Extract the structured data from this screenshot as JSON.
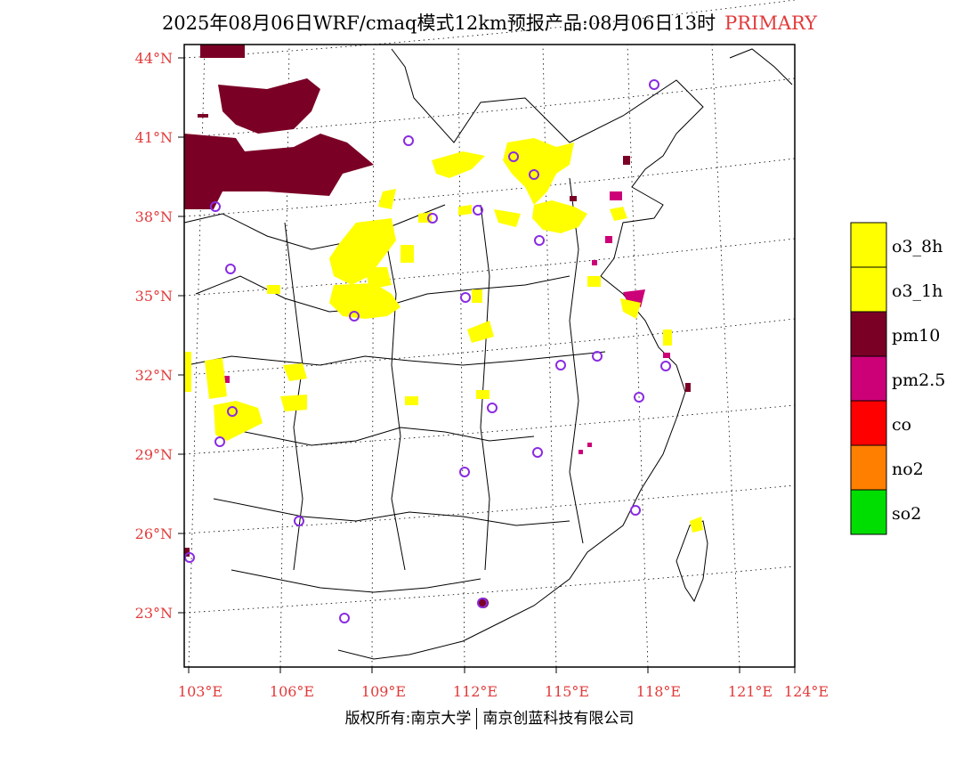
{
  "title": {
    "main": "2025年08月06日WRF/cmaq模式12km预报产品:08月06日13时",
    "tag": "PRIMARY",
    "tag_color": "#e23a3a"
  },
  "map": {
    "lat_labels": [
      "44°N",
      "41°N",
      "38°N",
      "35°N",
      "32°N",
      "29°N",
      "26°N",
      "23°N"
    ],
    "lon_labels": [
      "103°E",
      "106°E",
      "109°E",
      "112°E",
      "115°E",
      "118°E",
      "121°E",
      "124°E"
    ],
    "label_color": "#e23a3a",
    "region_color_o3": "#ffff00",
    "region_color_pm10": "#7b0026",
    "region_color_pm25": "#cc0077",
    "station_marker_color": "#8a2be2"
  },
  "legend": {
    "items": [
      {
        "label": "o3_8h",
        "color": "#ffff00"
      },
      {
        "label": "o3_1h",
        "color": "#ffff00"
      },
      {
        "label": "pm10",
        "color": "#7b0026"
      },
      {
        "label": "pm2.5",
        "color": "#cc0077"
      },
      {
        "label": "co",
        "color": "#ff0000"
      },
      {
        "label": "no2",
        "color": "#ff7f00"
      },
      {
        "label": "so2",
        "color": "#00dd00"
      }
    ]
  },
  "footer": {
    "left": "版权所有:南京大学",
    "right": "南京创蓝科技有限公司"
  }
}
